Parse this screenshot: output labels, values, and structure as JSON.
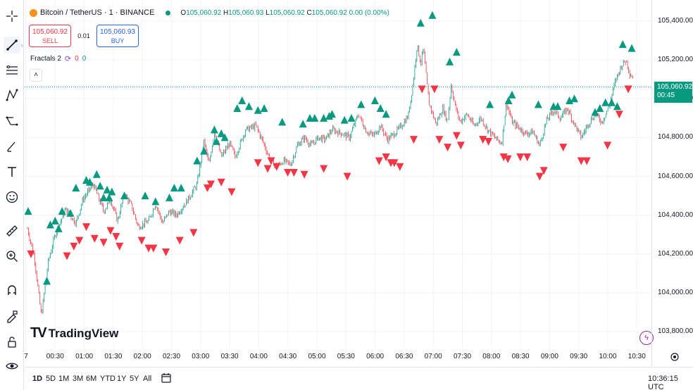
{
  "legend": {
    "symbol": "Bitcoin / TetherUS · 1 · BINANCE",
    "open_label": "O",
    "open": "105,060.92",
    "high_label": "H",
    "high": "105,060.93",
    "low_label": "L",
    "low": "105,060.92",
    "close_label": "C",
    "close": "105,060.92",
    "change": "0.00 (0.00%)"
  },
  "trade": {
    "sell_price": "105,060.92",
    "sell_label": "SELL",
    "spread": "0.01",
    "buy_price": "105,060.93",
    "buy_label": "BUY"
  },
  "indicator": {
    "name": "Fractals 2",
    "value_down": "0",
    "value_up": "0"
  },
  "collapse_glyph": "˄",
  "watermark": {
    "mark": "TV",
    "name": "TradingView"
  },
  "current_price": {
    "price": "105,060.92",
    "countdown": "00:45"
  },
  "price_axis": [
    "105,400.00",
    "105,200.00",
    "105,000.00",
    "104,800.00",
    "104,600.00",
    "104,400.00",
    "104,200.00",
    "104,000.00",
    "103,800.00"
  ],
  "time_axis": [
    "7",
    "00:30",
    "01:00",
    "01:30",
    "02:00",
    "02:30",
    "03:00",
    "03:30",
    "04:00",
    "04:30",
    "05:00",
    "05:30",
    "06:00",
    "06:30",
    "07:00",
    "07:30",
    "08:00",
    "08:30",
    "09:00",
    "09:30",
    "10:00",
    "10:30"
  ],
  "ranges": [
    "1D",
    "5D",
    "1M",
    "3M",
    "6M",
    "YTD",
    "1Y",
    "5Y",
    "All"
  ],
  "clock": "10:36:15 UTC",
  "colors": {
    "up": "#089981",
    "down": "#f23645",
    "grid": "#f0f3fa"
  },
  "toolbar_icons": [
    "crosshair-icon",
    "trend-line-icon",
    "fib-icon",
    "pattern-icon",
    "forecast-icon",
    "brush-icon",
    "text-icon",
    "emoji-icon",
    "ruler-icon",
    "zoom-icon",
    "magnet-icon",
    "lock-drawing-icon",
    "lock-icon",
    "eye-icon"
  ],
  "chart_data": {
    "type": "candlestick",
    "symbol": "BTCUSDT",
    "ylim": [
      103700,
      105450
    ],
    "path": [
      [
        0,
        104330
      ],
      [
        10,
        104180
      ],
      [
        20,
        103880
      ],
      [
        30,
        104160
      ],
      [
        40,
        104300
      ],
      [
        55,
        104430
      ],
      [
        70,
        104360
      ],
      [
        80,
        104480
      ],
      [
        95,
        104560
      ],
      [
        110,
        104420
      ],
      [
        120,
        104480
      ],
      [
        130,
        104370
      ],
      [
        140,
        104510
      ],
      [
        150,
        104450
      ],
      [
        160,
        104340
      ],
      [
        175,
        104370
      ],
      [
        185,
        104460
      ],
      [
        195,
        104360
      ],
      [
        205,
        104420
      ],
      [
        215,
        104400
      ],
      [
        230,
        104470
      ],
      [
        245,
        104560
      ],
      [
        255,
        104780
      ],
      [
        262,
        104660
      ],
      [
        270,
        104830
      ],
      [
        280,
        104700
      ],
      [
        292,
        104770
      ],
      [
        300,
        104700
      ],
      [
        315,
        104840
      ],
      [
        330,
        104860
      ],
      [
        340,
        104780
      ],
      [
        350,
        104690
      ],
      [
        360,
        104650
      ],
      [
        370,
        104680
      ],
      [
        380,
        104660
      ],
      [
        390,
        104760
      ],
      [
        400,
        104800
      ],
      [
        410,
        104760
      ],
      [
        420,
        104800
      ],
      [
        430,
        104790
      ],
      [
        440,
        104840
      ],
      [
        455,
        104820
      ],
      [
        465,
        104800
      ],
      [
        478,
        104920
      ],
      [
        490,
        104830
      ],
      [
        500,
        104810
      ],
      [
        510,
        104860
      ],
      [
        520,
        104790
      ],
      [
        530,
        104820
      ],
      [
        540,
        104860
      ],
      [
        550,
        104910
      ],
      [
        557,
        105080
      ],
      [
        563,
        105280
      ],
      [
        568,
        105180
      ],
      [
        572,
        105260
      ],
      [
        580,
        104980
      ],
      [
        590,
        104870
      ],
      [
        600,
        104950
      ],
      [
        607,
        104880
      ],
      [
        612,
        105070
      ],
      [
        618,
        104960
      ],
      [
        625,
        104880
      ],
      [
        635,
        104920
      ],
      [
        645,
        104860
      ],
      [
        655,
        104900
      ],
      [
        665,
        104840
      ],
      [
        675,
        104800
      ],
      [
        685,
        104770
      ],
      [
        692,
        104980
      ],
      [
        700,
        104880
      ],
      [
        710,
        104850
      ],
      [
        720,
        104820
      ],
      [
        730,
        104830
      ],
      [
        740,
        104760
      ],
      [
        750,
        104890
      ],
      [
        760,
        104940
      ],
      [
        770,
        104900
      ],
      [
        780,
        104950
      ],
      [
        790,
        104870
      ],
      [
        800,
        104800
      ],
      [
        810,
        104870
      ],
      [
        820,
        104920
      ],
      [
        830,
        104880
      ],
      [
        840,
        104960
      ],
      [
        850,
        105100
      ],
      [
        858,
        105170
      ],
      [
        865,
        105200
      ],
      [
        870,
        105130
      ],
      [
        875,
        105110
      ]
    ],
    "fractal_up": [
      [
        1,
        104420
      ],
      [
        28,
        104060
      ],
      [
        33,
        104350
      ],
      [
        40,
        104370
      ],
      [
        45,
        104330
      ],
      [
        50,
        104420
      ],
      [
        62,
        104410
      ],
      [
        70,
        104540
      ],
      [
        85,
        104580
      ],
      [
        90,
        104570
      ],
      [
        100,
        104610
      ],
      [
        105,
        104550
      ],
      [
        110,
        104490
      ],
      [
        115,
        104530
      ],
      [
        118,
        104490
      ],
      [
        122,
        104520
      ],
      [
        140,
        104500
      ],
      [
        170,
        104500
      ],
      [
        185,
        104470
      ],
      [
        205,
        104490
      ],
      [
        212,
        104540
      ],
      [
        222,
        104540
      ],
      [
        245,
        104680
      ],
      [
        255,
        104730
      ],
      [
        270,
        104840
      ],
      [
        273,
        104780
      ],
      [
        280,
        104820
      ],
      [
        285,
        104800
      ],
      [
        303,
        104950
      ],
      [
        310,
        104990
      ],
      [
        320,
        104960
      ],
      [
        333,
        104940
      ],
      [
        342,
        104950
      ],
      [
        368,
        104880
      ],
      [
        398,
        104870
      ],
      [
        408,
        104900
      ],
      [
        415,
        104900
      ],
      [
        428,
        104900
      ],
      [
        436,
        104910
      ],
      [
        440,
        104920
      ],
      [
        458,
        104890
      ],
      [
        468,
        104900
      ],
      [
        482,
        104970
      ],
      [
        502,
        104990
      ],
      [
        510,
        104950
      ],
      [
        518,
        104920
      ],
      [
        568,
        105390
      ],
      [
        585,
        105430
      ],
      [
        610,
        105190
      ],
      [
        620,
        105240
      ],
      [
        668,
        104970
      ],
      [
        695,
        104990
      ],
      [
        700,
        105020
      ],
      [
        738,
        104970
      ],
      [
        760,
        104960
      ],
      [
        766,
        104960
      ],
      [
        783,
        104990
      ],
      [
        790,
        105000
      ],
      [
        820,
        104930
      ],
      [
        827,
        104950
      ],
      [
        835,
        104980
      ],
      [
        844,
        104980
      ],
      [
        852,
        104960
      ],
      [
        860,
        105280
      ],
      [
        873,
        105260
      ]
    ],
    "fractal_down": [
      [
        5,
        104200
      ],
      [
        57,
        104190
      ],
      [
        67,
        104240
      ],
      [
        75,
        104270
      ],
      [
        85,
        104340
      ],
      [
        97,
        104280
      ],
      [
        110,
        104260
      ],
      [
        120,
        104320
      ],
      [
        128,
        104290
      ],
      [
        133,
        104240
      ],
      [
        165,
        104270
      ],
      [
        175,
        104230
      ],
      [
        182,
        104230
      ],
      [
        200,
        104210
      ],
      [
        220,
        104270
      ],
      [
        240,
        104310
      ],
      [
        260,
        104540
      ],
      [
        265,
        104560
      ],
      [
        280,
        104570
      ],
      [
        295,
        104520
      ],
      [
        333,
        104670
      ],
      [
        347,
        104640
      ],
      [
        352,
        104680
      ],
      [
        360,
        104650
      ],
      [
        376,
        104620
      ],
      [
        385,
        104620
      ],
      [
        400,
        104610
      ],
      [
        428,
        104640
      ],
      [
        462,
        104600
      ],
      [
        508,
        104680
      ],
      [
        518,
        104700
      ],
      [
        525,
        104670
      ],
      [
        530,
        104670
      ],
      [
        538,
        104650
      ],
      [
        558,
        104790
      ],
      [
        570,
        105050
      ],
      [
        588,
        105050
      ],
      [
        595,
        104790
      ],
      [
        607,
        104750
      ],
      [
        620,
        104810
      ],
      [
        626,
        104760
      ],
      [
        658,
        104790
      ],
      [
        666,
        104780
      ],
      [
        688,
        104700
      ],
      [
        694,
        104690
      ],
      [
        712,
        104700
      ],
      [
        722,
        104700
      ],
      [
        740,
        104600
      ],
      [
        746,
        104630
      ],
      [
        774,
        104750
      ],
      [
        800,
        104680
      ],
      [
        808,
        104680
      ],
      [
        838,
        104760
      ],
      [
        855,
        104920
      ],
      [
        868,
        105050
      ]
    ]
  }
}
